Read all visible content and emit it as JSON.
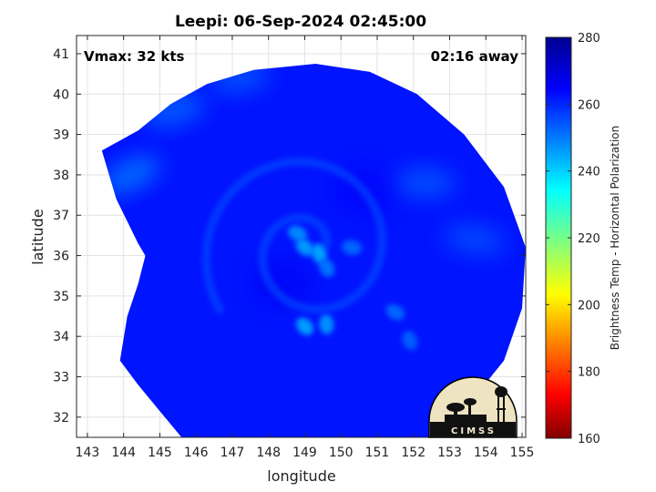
{
  "chart_data": {
    "type": "heatmap",
    "title": "Leepi: 06-Sep-2024 02:45:00",
    "xlabel": "longitude",
    "ylabel": "latitude",
    "xlim": [
      142.7,
      155.1
    ],
    "ylim": [
      31.5,
      41.45
    ],
    "xticks": [
      143,
      144,
      145,
      146,
      147,
      148,
      149,
      150,
      151,
      152,
      153,
      154,
      155
    ],
    "yticks": [
      32,
      33,
      34,
      35,
      36,
      37,
      38,
      39,
      40,
      41
    ],
    "grid": true,
    "colorbar": {
      "label": "Brightness Temp - Horizontal Polarization",
      "range": [
        160,
        280
      ],
      "ticks": [
        160,
        180,
        200,
        220,
        240,
        260,
        280
      ],
      "colormap": "jet"
    },
    "annotations": {
      "vmax": "Vmax: 32 kts",
      "time_away": "02:16 away"
    },
    "storm_center": {
      "lon": 149.1,
      "lat": 36.15
    },
    "swath_edge": [
      {
        "lon": 143.4,
        "lat": 38.6
      },
      {
        "lon": 144.4,
        "lat": 39.1
      },
      {
        "lon": 145.3,
        "lat": 39.75
      },
      {
        "lon": 146.3,
        "lat": 40.25
      },
      {
        "lon": 147.6,
        "lat": 40.6
      },
      {
        "lon": 149.3,
        "lat": 40.75
      },
      {
        "lon": 150.8,
        "lat": 40.55
      },
      {
        "lon": 152.1,
        "lat": 40.0
      },
      {
        "lon": 153.4,
        "lat": 39.0
      },
      {
        "lon": 154.5,
        "lat": 37.7
      },
      {
        "lon": 155.1,
        "lat": 36.2
      },
      {
        "lon": 155.0,
        "lat": 34.7
      },
      {
        "lon": 154.5,
        "lat": 33.4
      },
      {
        "lon": 153.6,
        "lat": 32.4
      },
      {
        "lon": 152.8,
        "lat": 31.7
      },
      {
        "lon": 152.5,
        "lat": 31.5
      },
      {
        "lon": 145.6,
        "lat": 31.5
      },
      {
        "lon": 145.0,
        "lat": 32.15
      },
      {
        "lon": 144.4,
        "lat": 32.8
      },
      {
        "lon": 143.9,
        "lat": 33.4
      },
      {
        "lon": 144.1,
        "lat": 34.5
      },
      {
        "lon": 144.4,
        "lat": 35.3
      },
      {
        "lon": 144.6,
        "lat": 36.0
      },
      {
        "lon": 144.4,
        "lat": 36.3
      },
      {
        "lon": 143.8,
        "lat": 37.4
      },
      {
        "lon": 143.4,
        "lat": 38.6
      }
    ],
    "features": [
      {
        "kind": "warm-background",
        "lon": 149.0,
        "lat": 36.3,
        "tb": 262
      },
      {
        "kind": "cloud-band",
        "lon": 144.2,
        "lat": 38.0,
        "tb": 250
      },
      {
        "kind": "cloud-band",
        "lon": 145.4,
        "lat": 39.6,
        "tb": 252
      },
      {
        "kind": "cloud-band",
        "lon": 147.2,
        "lat": 40.4,
        "tb": 254
      },
      {
        "kind": "cloud-band",
        "lon": 152.3,
        "lat": 37.8,
        "tb": 254
      },
      {
        "kind": "cloud-band",
        "lon": 153.7,
        "lat": 36.4,
        "tb": 255
      },
      {
        "kind": "convection",
        "lon": 149.0,
        "lat": 36.2,
        "tb": 245
      },
      {
        "kind": "convection",
        "lon": 149.4,
        "lat": 36.05,
        "tb": 244
      },
      {
        "kind": "convection",
        "lon": 148.8,
        "lat": 36.55,
        "tb": 248
      },
      {
        "kind": "convection",
        "lon": 149.6,
        "lat": 35.7,
        "tb": 250
      },
      {
        "kind": "convection",
        "lon": 150.3,
        "lat": 36.2,
        "tb": 252
      },
      {
        "kind": "convection",
        "lon": 149.0,
        "lat": 34.25,
        "tb": 245
      },
      {
        "kind": "convection",
        "lon": 149.6,
        "lat": 34.3,
        "tb": 247
      },
      {
        "kind": "convection",
        "lon": 151.5,
        "lat": 34.6,
        "tb": 252
      },
      {
        "kind": "convection",
        "lon": 151.9,
        "lat": 33.9,
        "tb": 253
      },
      {
        "kind": "warm-core",
        "lon": 148.4,
        "lat": 35.3,
        "tb": 266
      },
      {
        "kind": "warm-core",
        "lon": 150.6,
        "lat": 37.6,
        "tb": 265
      }
    ]
  },
  "logo": {
    "text": "CIMSS"
  }
}
